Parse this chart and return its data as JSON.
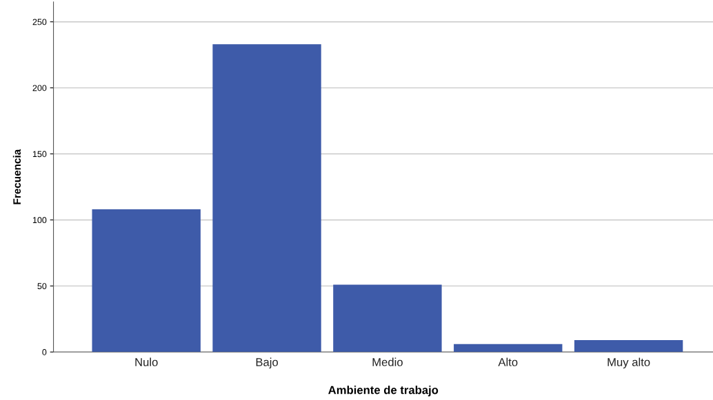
{
  "chart_data": {
    "type": "bar",
    "xlabel": "Ambiente de trabajo",
    "ylabel": "Frecuencia",
    "categories": [
      "Nulo",
      "Bajo",
      "Medio",
      "Alto",
      "Muy alto"
    ],
    "values": [
      108,
      233,
      51,
      6,
      9
    ],
    "color": "#3e5ba9",
    "ylim": [
      0,
      265
    ],
    "yticks": [
      0,
      50,
      100,
      150,
      200,
      250
    ],
    "grid": "y"
  }
}
